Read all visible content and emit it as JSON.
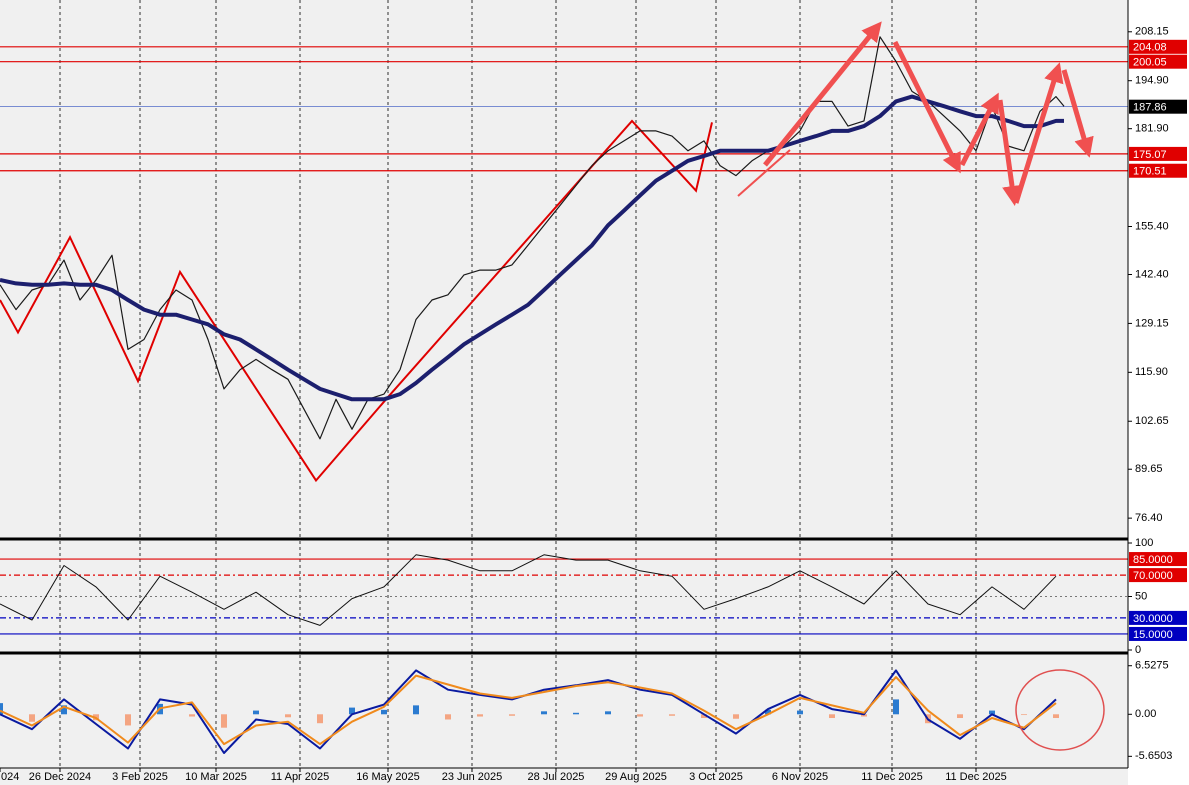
{
  "chart_data": [
    {
      "type": "line",
      "xlim": [
        0,
        282
      ],
      "ylim": [
        71.56,
        216.22
      ],
      "yticks": [
        208.15,
        {
          "value": 194.9,
          "label": "194.90"
        },
        {
          "value": 181.9,
          "label": "181.90"
        },
        {
          "value": 155.4,
          "label": "155.40"
        },
        {
          "value": 142.4,
          "label": "142.40"
        },
        129.15,
        {
          "value": 115.9,
          "label": "115.90"
        },
        102.65,
        89.65,
        {
          "value": 76.4,
          "label": "76.40"
        }
      ],
      "hlines": [
        {
          "value": 204.08,
          "color": "#e00000"
        },
        {
          "value": 200.05,
          "color": "#e00000"
        },
        {
          "value": 187.86,
          "color": "#000000"
        },
        {
          "value": 175.07,
          "color": "#e00000"
        },
        {
          "value": 170.51,
          "color": "#e00000"
        }
      ],
      "x": [
        0,
        4,
        8,
        12,
        16,
        20,
        24,
        28,
        32,
        36,
        40,
        44,
        48,
        52,
        56,
        60,
        64,
        68,
        72,
        76,
        80,
        84,
        88,
        92,
        96,
        100,
        104,
        108,
        112,
        116,
        120,
        124,
        128,
        132,
        136,
        140,
        144,
        148,
        152,
        156,
        160,
        164,
        168,
        172,
        176,
        180,
        184,
        188,
        192,
        196,
        200,
        204,
        208,
        212,
        216,
        220,
        224,
        228,
        232,
        236,
        240,
        244,
        248,
        252,
        256,
        260,
        264,
        266
      ],
      "series": [
        {
          "color": "#1a1a1a",
          "width": 1.2,
          "values": [
            139.6,
            132.9,
            138.2,
            139.6,
            146.3,
            135.5,
            140.9,
            147.6,
            122.1,
            124.8,
            132.9,
            138.2,
            135.5,
            124.8,
            111.4,
            116.6,
            119.4,
            116.6,
            114.0,
            105.9,
            97.9,
            108.6,
            100.5,
            108.6,
            110.0,
            116.6,
            130.2,
            135.5,
            136.9,
            142.3,
            143.6,
            143.6,
            145.0,
            150.3,
            155.7,
            161.1,
            166.5,
            171.9,
            175.9,
            178.6,
            181.3,
            181.3,
            179.9,
            175.9,
            178.6,
            171.9,
            169.2,
            173.2,
            175.9,
            177.2,
            181.3,
            189.3,
            189.3,
            182.6,
            184.0,
            206.8,
            200.1,
            192.0,
            189.3,
            185.3,
            181.3,
            175.9,
            188.0,
            177.2,
            175.9,
            186.6,
            190.6,
            188.0
          ]
        },
        {
          "color": "#1c1f6e",
          "width": 4,
          "values": [
            140.9,
            140,
            139.6,
            139.6,
            140,
            139.6,
            139.6,
            138.2,
            135.5,
            132.9,
            131.5,
            131.5,
            130.2,
            128.9,
            126.2,
            124.8,
            122.1,
            119.4,
            116.6,
            114,
            111.4,
            110,
            108.6,
            108.6,
            108.6,
            110,
            113,
            116.6,
            120,
            123.5,
            126.2,
            128.9,
            131.5,
            134.2,
            138.2,
            142.3,
            146.3,
            150.3,
            155.7,
            159.7,
            163.8,
            167.8,
            170.5,
            173.2,
            174.5,
            175.9,
            175.9,
            175.9,
            175.9,
            177.2,
            178.6,
            179.9,
            181.3,
            181.3,
            182.6,
            185.3,
            189.3,
            190.6,
            189.3,
            188,
            186.6,
            185.3,
            185.3,
            184,
            182.6,
            182.6,
            184,
            184
          ]
        }
      ],
      "zigzag": {
        "color": "#e00000",
        "x": [
          0,
          4.5,
          17.5,
          34.5,
          45,
          79,
          97,
          158,
          174,
          178
        ],
        "values": [
          135.5,
          126.7,
          152.5,
          113.5,
          143.1,
          86.6,
          109.2,
          184.0,
          165.1,
          183.6
        ]
      }
    },
    {
      "type": "line",
      "xlim": [
        0,
        282
      ],
      "ylim": [
        0,
        100
      ],
      "yticks": [
        100,
        50,
        0
      ],
      "hlines": [
        {
          "value": 85,
          "label": "85.0000",
          "color": "#e00000",
          "dash": ""
        },
        {
          "value": 70,
          "label": "70.0000",
          "color": "#e00000",
          "dash": "6 3 2 3"
        },
        {
          "value": 30,
          "label": "30.0000",
          "color": "#0000c0",
          "dash": "6 3 2 3"
        },
        {
          "value": 15,
          "label": "15.0000",
          "color": "#0000c0",
          "dash": ""
        }
      ],
      "x": [
        0,
        8,
        16,
        24,
        32,
        40,
        48,
        56,
        64,
        72,
        80,
        88,
        96,
        104,
        112,
        120,
        128,
        136,
        144,
        152,
        160,
        168,
        176,
        184,
        192,
        200,
        208,
        216,
        224,
        232,
        240,
        248,
        256,
        264
      ],
      "series": [
        {
          "color": "#111111",
          "width": 1,
          "values": [
            43,
            28,
            79,
            59,
            28,
            69,
            54,
            38,
            54,
            33,
            23,
            48,
            59,
            89,
            84,
            74,
            74,
            89,
            84,
            84,
            74,
            69,
            38,
            48,
            59,
            74,
            59,
            43,
            74,
            43,
            33,
            59,
            38,
            69
          ]
        }
      ]
    },
    {
      "type": "macd",
      "xlim": [
        0,
        282
      ],
      "ylim": [
        -6.95,
        7.7
      ],
      "yticks": [
        6.5275,
        {
          "value": 0,
          "label": "0.00"
        },
        -5.6503
      ],
      "xticks": [
        {
          "value": 0,
          "label": "024"
        },
        {
          "value": 15,
          "label": "26 Dec 2024"
        },
        {
          "value": 35,
          "label": "3 Feb 2025"
        },
        {
          "value": 54,
          "label": "10 Mar 2025"
        },
        {
          "value": 75,
          "label": "11 Apr 2025"
        },
        {
          "value": 97,
          "label": "16 May 2025"
        },
        {
          "value": 118,
          "label": "23 Jun 2025"
        },
        {
          "value": 139,
          "label": "28 Jul 2025"
        },
        {
          "value": 159,
          "label": "29 Aug 2025"
        },
        {
          "value": 179,
          "label": "3 Oct 2025"
        },
        {
          "value": 200,
          "label": "6 Nov 2025"
        },
        {
          "value": 223,
          "label": "11 Dec 2025"
        },
        {
          "value": 244,
          "label": "11 Dec 2025"
        }
      ],
      "x": [
        0,
        8,
        16,
        24,
        32,
        40,
        48,
        56,
        64,
        72,
        80,
        88,
        96,
        104,
        112,
        120,
        128,
        136,
        144,
        152,
        160,
        168,
        176,
        184,
        192,
        200,
        208,
        216,
        224,
        232,
        240,
        248,
        256,
        264
      ],
      "histogram": {
        "color": "#2b7bd0",
        "neg_color": "#f4a582",
        "values": [
          1.5,
          -1,
          1.2,
          -0.8,
          -1.5,
          1.4,
          -0.3,
          -1.8,
          0.5,
          -0.4,
          -1.2,
          0.9,
          0.6,
          1.2,
          -0.7,
          -0.3,
          -0.2,
          0.4,
          0.2,
          0.4,
          -0.3,
          -0.2,
          -0.5,
          -0.6,
          0.6,
          0.5,
          -0.5,
          -0.3,
          2,
          -1.2,
          -0.5,
          0.5,
          -0.1,
          -0.5
        ]
      },
      "series": [
        {
          "color": "#0a1aa0",
          "width": 2,
          "values": [
            0,
            -2,
            2,
            -1.3,
            -4.6,
            2,
            1.3,
            -5.2,
            -0.7,
            -1.3,
            -4.6,
            0,
            1.3,
            5.9,
            3.3,
            2.6,
            2,
            3.3,
            3.9,
            4.6,
            3.3,
            2.6,
            0,
            -2.6,
            0.7,
            2.6,
            0.7,
            0,
            5.9,
            -0.7,
            -3.3,
            0,
            -2,
            2
          ]
        },
        {
          "color": "#f08a1c",
          "width": 2,
          "values": [
            0.5,
            -1.5,
            1,
            -0.5,
            -3.8,
            0.8,
            1.6,
            -4,
            -1.5,
            -1,
            -4,
            -1,
            1,
            5.2,
            4,
            2.8,
            2.2,
            3,
            3.8,
            4.3,
            3.6,
            2.8,
            0.5,
            -2,
            0,
            2.2,
            1.2,
            0.2,
            5,
            0.5,
            -2.8,
            -0.5,
            -1.8,
            1.5
          ]
        }
      ]
    }
  ]
}
